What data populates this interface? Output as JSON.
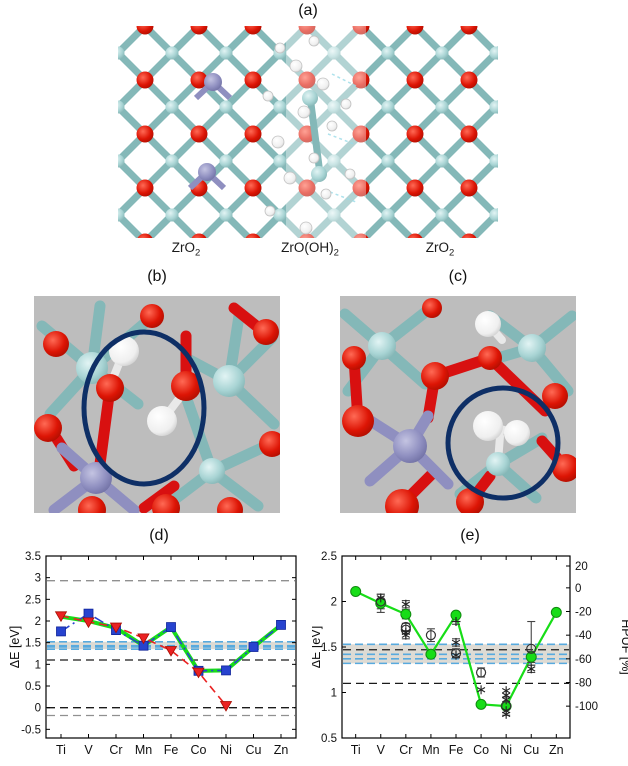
{
  "figure": {
    "panel_labels": {
      "a": "(a)",
      "b": "(b)",
      "c": "(c)",
      "d": "(d)",
      "e": "(e)"
    }
  },
  "panels": {
    "a": {
      "label": "(a)",
      "sublabels": [
        {
          "main": "ZrO",
          "sub": "2"
        },
        {
          "main": "ZrO(OH)",
          "sub": "2"
        },
        {
          "main": "ZrO",
          "sub": "2"
        }
      ]
    },
    "b": {
      "label": "(b)"
    },
    "c": {
      "label": "(c)"
    }
  },
  "colors": {
    "zr_atom": "#a8d4d4",
    "zr_stick": "#84b8b8",
    "o_atom": "#dd1505",
    "h_atom": "#f2f2f2",
    "dopant_atom": "#8f8fc0",
    "closeup_bg": "#bdbdbd",
    "highlight_circle": "#0e2f66",
    "series_green": "#17dd17",
    "series_blue": "#2743cf",
    "series_red": "#ea2222",
    "band_line_blue": "#58aade",
    "band_fill": "#ccc8bd",
    "hline_black": "#1a1a1a",
    "hline_gray": "#909090"
  },
  "chart_data": [
    {
      "id": "d",
      "type": "line",
      "title": "(d)",
      "ylabel": "ΔE [eV]",
      "categories": [
        "Ti",
        "V",
        "Cr",
        "Mn",
        "Fe",
        "Co",
        "Ni",
        "Cu",
        "Zn"
      ],
      "ylim": [
        -0.7,
        3.5
      ],
      "yticks": [
        3.5,
        3,
        2.5,
        2,
        1.5,
        1,
        0.5,
        0,
        -0.5
      ],
      "grid": false,
      "legend": "none",
      "series": [
        {
          "name": "green-solid",
          "color": "#17dd17",
          "marker": "none",
          "line": "solid",
          "width": 4,
          "values": [
            2.1,
            2.0,
            1.84,
            1.43,
            1.86,
            0.85,
            0.86,
            1.4,
            1.91
          ]
        },
        {
          "name": "blue-squares",
          "color": "#2743cf",
          "marker": "square",
          "line": "dashdot",
          "width": 1.6,
          "values": [
            1.76,
            2.17,
            1.79,
            1.43,
            1.86,
            0.85,
            0.86,
            1.4,
            1.91
          ]
        },
        {
          "name": "red-triangles",
          "color": "#ea2222",
          "marker": "triangle-down",
          "line": "dashed",
          "width": 1.6,
          "values": [
            2.12,
            1.98,
            1.86,
            1.61,
            1.32,
            0.82,
            0.05,
            null,
            null
          ]
        }
      ],
      "hlines": [
        {
          "y": 2.93,
          "color": "#909090",
          "style": "dashed"
        },
        {
          "y": 1.1,
          "color": "#1a1a1a",
          "style": "dashed"
        },
        {
          "y": 0.0,
          "color": "#1a1a1a",
          "style": "dashed"
        },
        {
          "y": -0.18,
          "color": "#909090",
          "style": "dashed"
        }
      ],
      "band": {
        "from": 1.35,
        "to": 1.52,
        "color": "#ccc8bd"
      },
      "band_lines": [
        1.52,
        1.43,
        1.4,
        1.35
      ]
    },
    {
      "id": "e",
      "type": "line",
      "title": "(e)",
      "ylabel": "ΔE [eV]",
      "y2label": "HPUF [%]",
      "categories": [
        "Ti",
        "V",
        "Cr",
        "Mn",
        "Fe",
        "Co",
        "Ni",
        "Cu",
        "Zn"
      ],
      "ylim": [
        0.5,
        2.5
      ],
      "yticks": [
        2.5,
        2,
        1.5,
        1,
        0.5
      ],
      "y2ticks": [
        {
          "label": "20",
          "at": 2.39
        },
        {
          "label": "0",
          "at": 2.15
        },
        {
          "label": "-20",
          "at": 1.89
        },
        {
          "label": "-40",
          "at": 1.63
        },
        {
          "label": "-60",
          "at": 1.37
        },
        {
          "label": "-80",
          "at": 1.11
        },
        {
          "label": "-100",
          "at": 0.85
        }
      ],
      "grid": false,
      "legend": "none",
      "series": [
        {
          "name": "green-circles",
          "color": "#17dd17",
          "marker": "circle",
          "line": "solid",
          "width": 2.2,
          "values": [
            2.11,
            1.98,
            1.86,
            1.42,
            1.85,
            0.87,
            0.85,
            1.39,
            1.88
          ],
          "errors": [
            null,
            0.1,
            0.05,
            null,
            null,
            null,
            null,
            0.06,
            null
          ]
        }
      ],
      "points": [
        {
          "type": "open-circle",
          "x": "V",
          "y": 2.0,
          "err": 0.08
        },
        {
          "type": "asterisk",
          "x": "V",
          "y": 2.04
        },
        {
          "type": "asterisk",
          "x": "Cr",
          "y": 1.97,
          "err": 0.04
        },
        {
          "type": "open-circle",
          "x": "Cr",
          "y": 1.72,
          "err": 0.04
        },
        {
          "type": "open-circle",
          "x": "Cr",
          "y": 1.69
        },
        {
          "type": "asterisk",
          "x": "Cr",
          "y": 1.66
        },
        {
          "type": "asterisk",
          "x": "Cr",
          "y": 1.63,
          "err": 0.04
        },
        {
          "type": "open-circle",
          "x": "Mn",
          "y": 1.63,
          "err": 0.07
        },
        {
          "type": "plus",
          "x": "Fe",
          "y": 1.78,
          "err": 0.03
        },
        {
          "type": "asterisk",
          "x": "Fe",
          "y": 1.55,
          "err": 0.04
        },
        {
          "type": "open-circle",
          "x": "Fe",
          "y": 1.43,
          "err": 0.05
        },
        {
          "type": "asterisk",
          "x": "Fe",
          "y": 1.41
        },
        {
          "type": "open-circle",
          "x": "Co",
          "y": 1.22,
          "err": 0.05
        },
        {
          "type": "asterisk",
          "x": "Co",
          "y": 1.03
        },
        {
          "type": "asterisk",
          "x": "Ni",
          "y": 1.02
        },
        {
          "type": "asterisk",
          "x": "Ni",
          "y": 0.97
        },
        {
          "type": "asterisk",
          "x": "Ni",
          "y": 0.92
        },
        {
          "type": "open-circle",
          "x": "Ni",
          "y": 0.85,
          "err": 0.1
        },
        {
          "type": "asterisk",
          "x": "Ni",
          "y": 0.8
        },
        {
          "type": "asterisk",
          "x": "Ni",
          "y": 0.76
        },
        {
          "type": "open-circle",
          "x": "Cu",
          "y": 1.48,
          "err_up": 0.3,
          "err_dn": 0.18
        },
        {
          "type": "asterisk",
          "x": "Cu",
          "y": 1.26,
          "err": 0.04
        }
      ],
      "hlines": [
        {
          "y": 1.47,
          "color": "#1a1a1a",
          "style": "dashed"
        },
        {
          "y": 1.1,
          "color": "#1a1a1a",
          "style": "dashed"
        }
      ],
      "band": {
        "from": 1.32,
        "to": 1.53,
        "color": "#ccc8bd"
      },
      "band_lines": [
        1.53,
        1.42,
        1.37,
        1.32
      ]
    }
  ]
}
